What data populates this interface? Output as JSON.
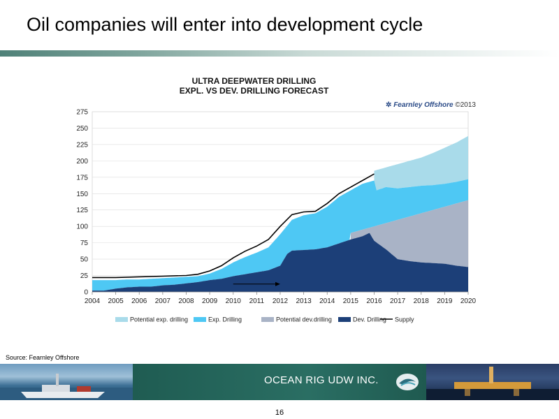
{
  "slide": {
    "title": "Oil companies will enter into development cycle",
    "source": "Source: Fearnley Offshore",
    "company": "OCEAN RIG UDW INC.",
    "page_number": "16"
  },
  "colors": {
    "potential_exp": "#a9dbea",
    "exp": "#4ec8f4",
    "potential_dev": "#a9b3c6",
    "dev": "#1c3f78",
    "supply": "#000000"
  },
  "chart_data": {
    "type": "area",
    "title": "ULTRA DEEPWATER DRILLING\nEXPL. VS DEV. DRILLING FORECAST",
    "title_lines": [
      "ULTRA DEEPWATER DRILLING",
      "EXPL. VS DEV. DRILLING FORECAST"
    ],
    "brand": {
      "name": "Fearnley Offshore",
      "copyright": "©2013"
    },
    "xlim": [
      2004,
      2020
    ],
    "ylim": [
      0,
      275
    ],
    "x_ticks": [
      "2004",
      "2005",
      "2006",
      "2007",
      "2008",
      "2009",
      "2010",
      "2011",
      "2012",
      "2013",
      "2014",
      "2015",
      "2016",
      "2017",
      "2018",
      "2019",
      "2020"
    ],
    "y_ticks": [
      "0",
      "25",
      "50",
      "75",
      "100",
      "125",
      "150",
      "175",
      "200",
      "225",
      "250",
      "275"
    ],
    "legend_position": "bottom",
    "grid": true,
    "legend": [
      {
        "key": "potential_exp",
        "label": "Potential exp. drilling",
        "style": "patch"
      },
      {
        "key": "exp",
        "label": "Exp. Drilling",
        "style": "patch"
      },
      {
        "key": "potential_dev",
        "label": "Potential dev.drilling",
        "style": "patch"
      },
      {
        "key": "dev",
        "label": "Dev. Drilling",
        "style": "patch"
      },
      {
        "key": "supply",
        "label": "Supply",
        "style": "line"
      }
    ],
    "series": {
      "dev": {
        "name": "Dev. Drilling",
        "x": [
          2004,
          2004.5,
          2005,
          2005.5,
          2006,
          2006.5,
          2007,
          2007.5,
          2008,
          2008.5,
          2009,
          2009.5,
          2010,
          2010.5,
          2011,
          2011.5,
          2012,
          2012.3,
          2012.5,
          2013,
          2013.5,
          2014,
          2014.5,
          2015,
          2015.5,
          2015.8,
          2016,
          2016.5,
          2017,
          2017.5,
          2018,
          2018.5,
          2019,
          2019.5,
          2020
        ],
        "y": [
          2,
          2,
          5,
          7,
          8,
          8,
          10,
          11,
          13,
          15,
          18,
          20,
          24,
          27,
          30,
          33,
          40,
          58,
          63,
          64,
          65,
          68,
          74,
          80,
          85,
          90,
          78,
          65,
          50,
          47,
          45,
          44,
          43,
          40,
          38
        ]
      },
      "potential_dev_top": {
        "name": "Potential dev.drilling",
        "x": [
          2015,
          2015.5,
          2016,
          2016.5,
          2017,
          2017.5,
          2018,
          2018.5,
          2019,
          2019.5,
          2020
        ],
        "y": [
          90,
          95,
          100,
          105,
          110,
          115,
          120,
          125,
          130,
          135,
          140
        ]
      },
      "exp_top": {
        "name": "Exp. Drilling",
        "x": [
          2004,
          2004.5,
          2005,
          2005.5,
          2006,
          2006.5,
          2007,
          2007.5,
          2008,
          2008.5,
          2009,
          2009.5,
          2010,
          2010.5,
          2011,
          2011.5,
          2012,
          2012.5,
          2013,
          2013.5,
          2014,
          2014.5,
          2015,
          2015.5,
          2016,
          2016.1,
          2016.5,
          2017,
          2017.5,
          2018,
          2018.5,
          2019,
          2019.5,
          2020
        ],
        "y": [
          18,
          18,
          18,
          19,
          19,
          20,
          21,
          22,
          23,
          24,
          28,
          35,
          45,
          53,
          60,
          68,
          88,
          110,
          117,
          120,
          130,
          145,
          155,
          165,
          170,
          155,
          160,
          158,
          160,
          162,
          163,
          165,
          168,
          172
        ]
      },
      "potential_exp_top": {
        "name": "Potential exp. drilling",
        "x": [
          2016,
          2016.5,
          2017,
          2017.5,
          2018,
          2018.5,
          2019,
          2019.5,
          2020
        ],
        "y": [
          185,
          190,
          195,
          200,
          205,
          212,
          220,
          228,
          238
        ]
      },
      "supply": {
        "name": "Supply",
        "x": [
          2004,
          2005,
          2006,
          2007,
          2008,
          2008.5,
          2009,
          2009.5,
          2010,
          2010.5,
          2011,
          2011.5,
          2012,
          2012.5,
          2013,
          2013.5,
          2014,
          2014.5,
          2015,
          2015.5,
          2016
        ],
        "y": [
          22,
          22,
          23,
          24,
          25,
          27,
          32,
          40,
          52,
          62,
          70,
          80,
          100,
          118,
          122,
          123,
          135,
          150,
          160,
          170,
          180
        ]
      }
    },
    "annotation_arrow": {
      "from": [
        2010,
        12
      ],
      "to": [
        2012,
        12
      ]
    }
  }
}
